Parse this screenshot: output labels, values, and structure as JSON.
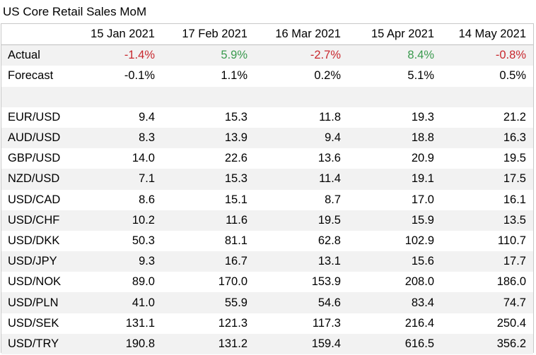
{
  "title": "US Core Retail Sales MoM",
  "chart_data": {
    "type": "table",
    "columns": [
      "15 Jan 2021",
      "17 Feb 2021",
      "16 Mar 2021",
      "15 Apr 2021",
      "14 May 2021"
    ],
    "rows": [
      {
        "label": "Actual",
        "values": [
          "-1.4%",
          "5.9%",
          "-2.7%",
          "8.4%",
          "-0.8%"
        ],
        "colored": true
      },
      {
        "label": "Forecast",
        "values": [
          "-0.1%",
          "1.1%",
          "0.2%",
          "5.1%",
          "0.5%"
        ]
      },
      {
        "label": "",
        "values": [
          "",
          "",
          "",
          "",
          ""
        ]
      },
      {
        "label": "EUR/USD",
        "values": [
          "9.4",
          "15.3",
          "11.8",
          "19.3",
          "21.2"
        ]
      },
      {
        "label": "AUD/USD",
        "values": [
          "8.3",
          "13.9",
          "9.4",
          "18.8",
          "16.3"
        ]
      },
      {
        "label": "GBP/USD",
        "values": [
          "14.0",
          "22.6",
          "13.6",
          "20.9",
          "19.5"
        ]
      },
      {
        "label": "NZD/USD",
        "values": [
          "7.1",
          "15.3",
          "11.4",
          "19.1",
          "17.5"
        ]
      },
      {
        "label": "USD/CAD",
        "values": [
          "8.6",
          "15.1",
          "8.7",
          "17.0",
          "16.1"
        ]
      },
      {
        "label": "USD/CHF",
        "values": [
          "10.2",
          "11.6",
          "19.5",
          "15.9",
          "13.5"
        ]
      },
      {
        "label": "USD/DKK",
        "values": [
          "50.3",
          "81.1",
          "62.8",
          "102.9",
          "110.7"
        ]
      },
      {
        "label": "USD/JPY",
        "values": [
          "9.3",
          "16.7",
          "13.1",
          "15.6",
          "17.7"
        ]
      },
      {
        "label": "USD/NOK",
        "values": [
          "89.0",
          "170.0",
          "153.9",
          "208.0",
          "186.0"
        ]
      },
      {
        "label": "USD/PLN",
        "values": [
          "41.0",
          "55.9",
          "54.6",
          "83.4",
          "74.7"
        ]
      },
      {
        "label": "USD/SEK",
        "values": [
          "131.1",
          "121.3",
          "117.3",
          "216.4",
          "250.4"
        ]
      },
      {
        "label": "USD/TRY",
        "values": [
          "190.8",
          "131.2",
          "159.4",
          "616.5",
          "356.2"
        ]
      }
    ],
    "colors": {
      "negative": "#c8282e",
      "positive": "#3a9a4e",
      "stripe": "#f2f2f2",
      "border": "#c8c8c8"
    }
  }
}
